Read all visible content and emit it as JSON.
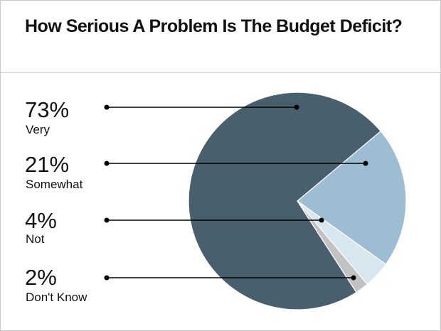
{
  "chart_data": {
    "type": "pie",
    "title": "How Serious A Problem Is The Budget Deficit?",
    "categories": [
      "Very",
      "Somewhat",
      "Not",
      "Don't Know"
    ],
    "values": [
      73,
      21,
      4,
      2
    ],
    "labels": [
      "73%",
      "21%",
      "4%",
      "2%"
    ],
    "colors": [
      "#4a5f6e",
      "#9dbdd2",
      "#d7e6ef",
      "#c2c2c2"
    ],
    "legend": "left"
  }
}
